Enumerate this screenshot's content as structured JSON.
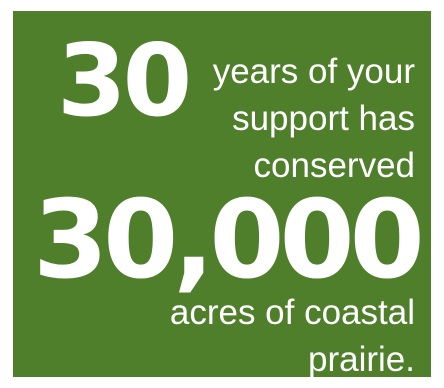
{
  "infographic": {
    "headline_number": "30",
    "line1": "years of your",
    "line2": "support has",
    "line3": "conserved",
    "big_number": "30,000",
    "line4": "acres of coastal",
    "line5": "prairie."
  },
  "colors": {
    "background": "#4f7f2b",
    "text": "#ffffff"
  }
}
